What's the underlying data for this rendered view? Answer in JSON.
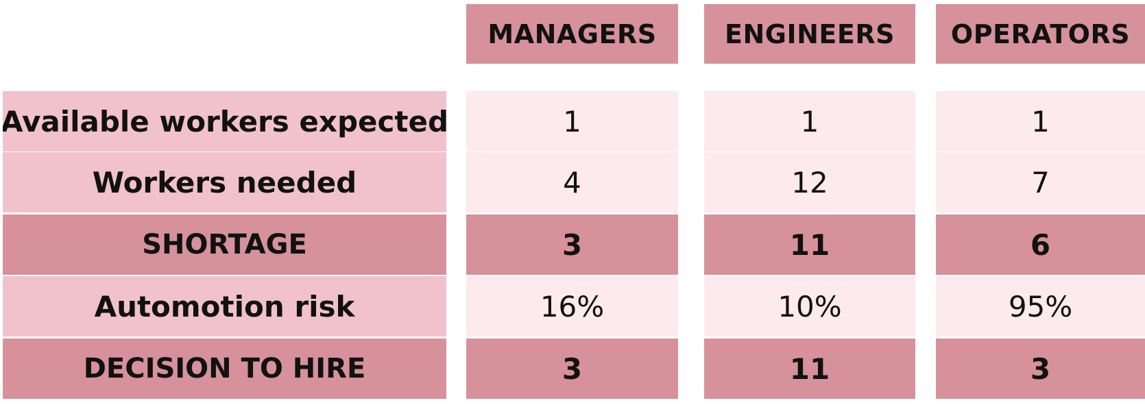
{
  "columns": [
    "MANAGERS",
    "ENGINEERS",
    "OPERATORS"
  ],
  "rows": [
    {
      "label": "Available workers expected",
      "values": [
        "1",
        "1",
        "1"
      ],
      "style": "light"
    },
    {
      "label": "Workers needed",
      "values": [
        "4",
        "12",
        "7"
      ],
      "style": "light"
    },
    {
      "label": "SHORTAGE",
      "values": [
        "3",
        "11",
        "6"
      ],
      "style": "dark"
    },
    {
      "label": "Automotion risk",
      "values": [
        "16%",
        "10%",
        "95%"
      ],
      "style": "light"
    },
    {
      "label": "DECISION TO HIRE",
      "values": [
        "3",
        "11",
        "3"
      ],
      "style": "dark"
    }
  ],
  "colors": {
    "header_bg": "#d6919b",
    "label_light_bg": "#f1c2cb",
    "value_light_bg": "#fdeaee",
    "dark_row_bg": "#d6919b"
  }
}
